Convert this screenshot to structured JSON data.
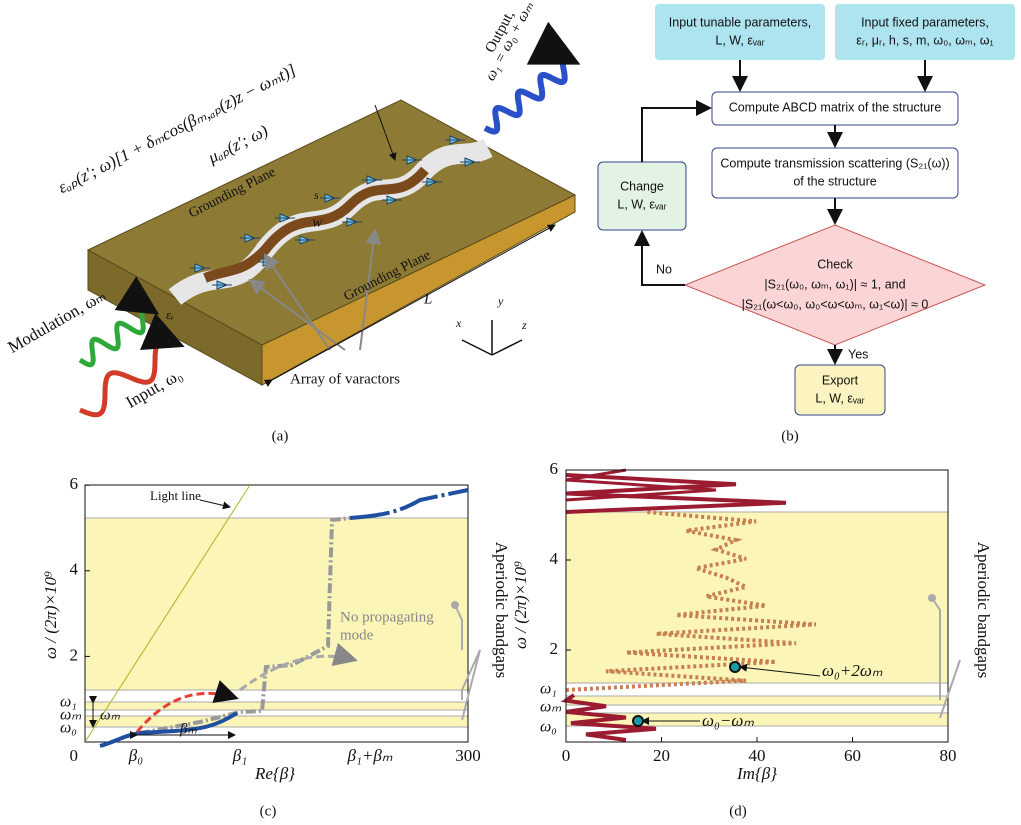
{
  "panel_a": {
    "label": "(a)",
    "output": "Output,",
    "output_freq": "ω₁ = ω₀ + ωₘ",
    "permittivity": "εₐₚ(z′; ω)[1 + δₘcos(βₘ,ₐₚ(z)z − ωₘt)]",
    "permeability": "μₐₚ(z′; ω)",
    "plane_top": "Grounding Plane",
    "plane_bottom": "Grounding Plane",
    "s": "s",
    "W": "W",
    "L": "L",
    "epsilon_r": "εᵣ",
    "modulation": "Modulation, ωₘ",
    "input": "Input, ω₀",
    "varactors": "Array of varactors",
    "axes": [
      "x",
      "y",
      "z"
    ]
  },
  "panel_b": {
    "label": "(b)",
    "nodes": [
      {
        "lines": [
          "Input tunable parameters,",
          "L, W, εᵥₐᵣ"
        ]
      },
      {
        "lines": [
          "Input fixed parameters,",
          "εᵣ, μᵣ, h, s, m, ω₀, ωₘ, ω₁"
        ]
      },
      {
        "lines": [
          "Compute ABCD matrix of the structure"
        ]
      },
      {
        "lines": [
          "Compute transmission scattering (S₂₁(ω))",
          "of the structure"
        ]
      },
      {
        "lines": [
          "Change",
          "L, W, εᵥₐᵣ"
        ]
      },
      {
        "lines": [
          "Check",
          "|S₂₁(ω₀, ωₘ, ω₁)| ≈ 1, and",
          "|S₂₁(ω<ω₀, ω₀<ω<ωₘ, ω₁<ω)| ≈ 0"
        ]
      },
      {
        "lines": [
          "Export",
          "L, W, εᵥₐᵣ"
        ]
      }
    ],
    "no": "No",
    "yes": "Yes"
  },
  "panel_c": {
    "label": "(c)",
    "y_axis": "ω / (2π)×10⁹",
    "x_axis": "Re{β}",
    "yticks": [
      0,
      2,
      4,
      6
    ],
    "xticks": [
      300
    ],
    "freq_labels": [
      "ω₁",
      "ωₘ",
      "ω₀"
    ],
    "beta_labels": [
      "β₀",
      "β₁",
      "β₁+βₘ"
    ],
    "light_line": "Light line",
    "no_mode": [
      "No propagating",
      "mode"
    ],
    "omega_m": "ωₘ",
    "beta_m": "βₘ",
    "bandgaps": "Aperiodic bandgaps"
  },
  "panel_d": {
    "label": "(d)",
    "y_axis": "ω / (2π)×10⁹",
    "x_axis": "Im{β}",
    "yticks": [
      2,
      4,
      6
    ],
    "xticks": [
      0,
      20,
      40,
      60,
      80
    ],
    "freq_labels": [
      "ω₁",
      "ωₘ",
      "ω₀"
    ],
    "upper": "ω₀+2ωₘ",
    "lower": "ω₀−ωₘ",
    "bandgaps": "Aperiodic bandgaps"
  }
}
